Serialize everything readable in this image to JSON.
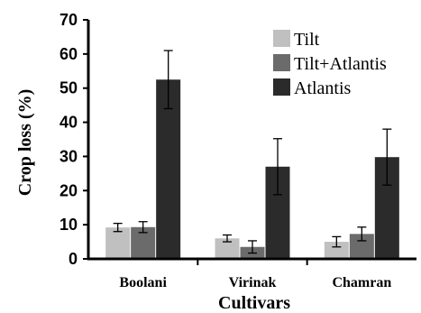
{
  "chart_data": {
    "type": "bar",
    "categories": [
      "Boolani",
      "Virinak",
      "Chamran"
    ],
    "xlabel": "Cultivars",
    "ylabel": "Crop loss (%)",
    "ylim": [
      0,
      70
    ],
    "yticks": [
      0,
      10,
      20,
      30,
      40,
      50,
      60,
      70
    ],
    "grid": false,
    "legend_position": "top-right",
    "series": [
      {
        "name": "Tilt",
        "color": "#c0c0c0",
        "values": [
          9.2,
          6.0,
          5.0
        ],
        "errors": [
          1.2,
          1.0,
          1.5
        ]
      },
      {
        "name": "Tilt+Atlantis",
        "color": "#6b6b6b",
        "values": [
          9.3,
          3.5,
          7.3
        ],
        "errors": [
          1.6,
          1.8,
          2.0
        ]
      },
      {
        "name": "Atlantis",
        "color": "#2b2b2b",
        "values": [
          52.5,
          27.0,
          29.8
        ],
        "errors": [
          8.5,
          8.2,
          8.2
        ]
      }
    ]
  }
}
